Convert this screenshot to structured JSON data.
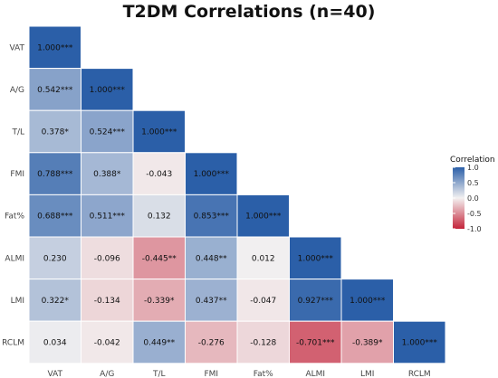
{
  "chart_data": {
    "type": "heatmap",
    "title": "T2DM Correlations (n=40)",
    "variables": [
      "VAT",
      "A/G",
      "T/L",
      "FMI",
      "Fat%",
      "ALMI",
      "LMI",
      "RCLM"
    ],
    "triangle": "lower",
    "values": [
      [
        1.0
      ],
      [
        0.542,
        1.0
      ],
      [
        0.378,
        0.524,
        1.0
      ],
      [
        0.788,
        0.388,
        -0.043,
        1.0
      ],
      [
        0.688,
        0.511,
        0.132,
        0.853,
        1.0
      ],
      [
        0.23,
        -0.096,
        -0.445,
        0.448,
        0.012,
        1.0
      ],
      [
        0.322,
        -0.134,
        -0.339,
        0.437,
        -0.047,
        0.927,
        1.0
      ],
      [
        0.034,
        -0.042,
        0.449,
        -0.276,
        -0.128,
        -0.701,
        -0.389,
        1.0
      ]
    ],
    "labels": [
      [
        "1.000***"
      ],
      [
        "0.542***",
        "1.000***"
      ],
      [
        "0.378*",
        "0.524***",
        "1.000***"
      ],
      [
        "0.788***",
        "0.388*",
        "-0.043",
        "1.000***"
      ],
      [
        "0.688***",
        "0.511***",
        "0.132",
        "0.853***",
        "1.000***"
      ],
      [
        "0.230",
        "-0.096",
        "-0.445**",
        "0.448**",
        "0.012",
        "1.000***"
      ],
      [
        "0.322*",
        "-0.134",
        "-0.339*",
        "0.437**",
        "-0.047",
        "0.927***",
        "1.000***"
      ],
      [
        "0.034",
        "-0.042",
        "0.449**",
        "-0.276",
        "-0.128",
        "-0.701***",
        "-0.389*",
        "1.000***"
      ]
    ],
    "legend": {
      "title": "Correlation",
      "placement": "right",
      "range": [
        -1.0,
        1.0
      ],
      "ticks": [
        1.0,
        0.5,
        0.0,
        -0.5,
        -1.0
      ],
      "tick_labels": [
        "1.0",
        "0.5",
        "0.0",
        "-0.5",
        "-1.0"
      ]
    },
    "colors": {
      "positive": "#2b5fa8",
      "neutral": "#f3f1f1",
      "negative": "#c4243a"
    },
    "grid": false
  }
}
